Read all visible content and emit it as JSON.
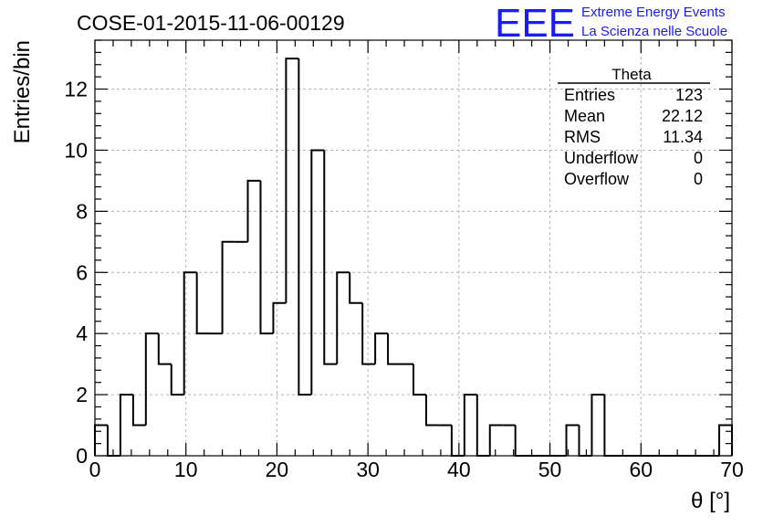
{
  "header": {
    "run_title": "COSE-01-2015-11-06-00129",
    "logo_text": "EEE",
    "logo_line1": "Extreme Energy Events",
    "logo_line2": "La Scienza nelle Scuole",
    "logo_color": "#1a1aff"
  },
  "stats_box": {
    "title": "Theta",
    "rows": [
      {
        "label": "Entries",
        "value": "123"
      },
      {
        "label": "Mean",
        "value": "22.12"
      },
      {
        "label": "RMS",
        "value": "11.34"
      },
      {
        "label": "Underflow",
        "value": "0"
      },
      {
        "label": "Overflow",
        "value": "0"
      }
    ]
  },
  "chart_data": {
    "type": "bar",
    "style": "step-histogram",
    "title": "COSE-01-2015-11-06-00129",
    "xlabel": "θ [°]",
    "ylabel": "Entries/bin",
    "xlim": [
      0,
      70
    ],
    "ylim": [
      0,
      13.6
    ],
    "x_ticks": [
      0,
      10,
      20,
      30,
      40,
      50,
      60,
      70
    ],
    "y_ticks": [
      0,
      2,
      4,
      6,
      8,
      10,
      12
    ],
    "grid": true,
    "legend": "top-right",
    "bin_width": 1.4,
    "bin_edges_start": 0,
    "values": [
      1,
      0,
      2,
      1,
      4,
      3,
      2,
      6,
      4,
      4,
      7,
      7,
      9,
      4,
      5,
      13,
      2,
      10,
      3,
      6,
      5,
      3,
      4,
      3,
      3,
      2,
      1,
      1,
      0,
      2,
      0,
      1,
      1,
      0,
      0,
      0,
      0,
      1,
      0,
      2,
      0,
      0,
      0,
      0,
      0,
      0,
      0,
      0,
      0,
      1
    ],
    "line_color": "#000000",
    "grid_color": "#b4b4b4"
  }
}
